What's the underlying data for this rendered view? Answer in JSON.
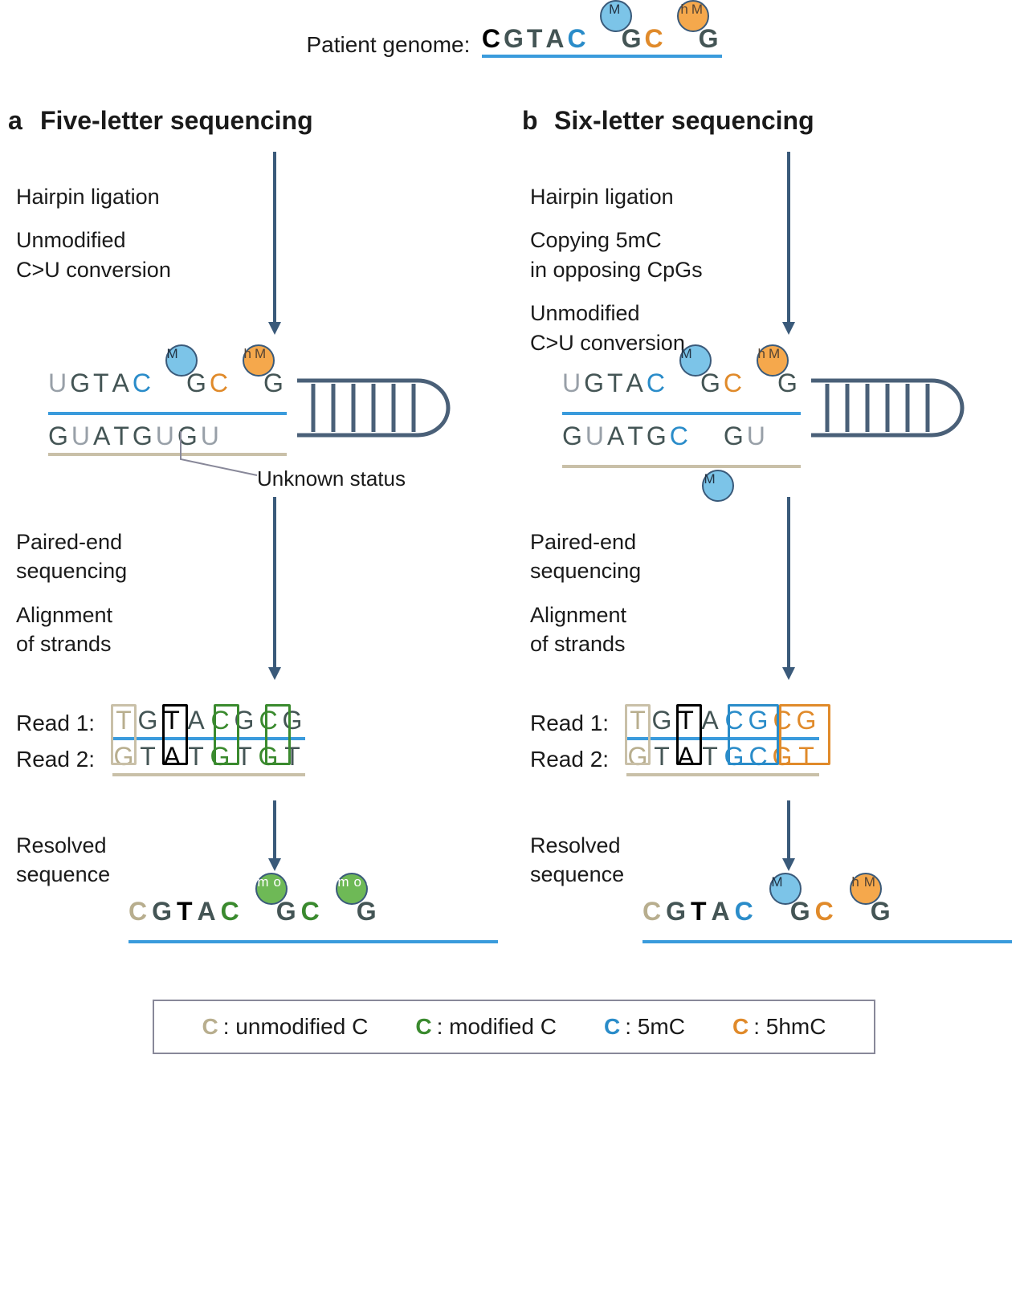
{
  "colors": {
    "blue": "#3a9bdc",
    "tan": "#c9c0a8",
    "green": "#3a8a2e",
    "orange": "#e08a2a",
    "dark_blue": "#3a5a7a",
    "black": "#000000",
    "gray": "#98a0a8",
    "marker_blue_bg": "#7cc4e8",
    "marker_orange_bg": "#f5a84c",
    "marker_green_bg": "#6eb956",
    "box_tan": "#c9c0a8",
    "box_black": "#000000",
    "box_green": "#3a8a2e",
    "box_blue": "#2a8cc9",
    "box_orange": "#e08a2a"
  },
  "top": {
    "label": "Patient genome:",
    "sequence": [
      {
        "b": "C",
        "cls": "c-black",
        "bold": true
      },
      {
        "b": "G",
        "cls": "c-dark"
      },
      {
        "b": "T",
        "cls": "c-dark"
      },
      {
        "b": "A",
        "cls": "c-dark"
      },
      {
        "b": "C",
        "cls": "c-blue",
        "marker": "M",
        "mcls": "marker-m"
      },
      {
        "b": "G",
        "cls": "c-dark"
      },
      {
        "b": "C",
        "cls": "c-orange",
        "marker": "hM",
        "mcls": "marker-hm"
      },
      {
        "b": "G",
        "cls": "c-dark"
      }
    ]
  },
  "panel_a": {
    "label": "a",
    "title": "Five-letter sequencing",
    "step1_lines": [
      "Hairpin ligation",
      "Unmodified\nC>U conversion"
    ],
    "hairpin_top": [
      {
        "b": "U",
        "cls": "c-gray"
      },
      {
        "b": "G",
        "cls": "c-dark"
      },
      {
        "b": "T",
        "cls": "c-dark"
      },
      {
        "b": "A",
        "cls": "c-dark"
      },
      {
        "b": "C",
        "cls": "c-blue",
        "marker": "M",
        "mcls": "marker-m"
      },
      {
        "b": "G",
        "cls": "c-dark"
      },
      {
        "b": "C",
        "cls": "c-orange",
        "marker": "hM",
        "mcls": "marker-hm"
      },
      {
        "b": "G",
        "cls": "c-dark"
      }
    ],
    "hairpin_bot": [
      {
        "b": "G",
        "cls": "c-dark"
      },
      {
        "b": "U",
        "cls": "c-gray"
      },
      {
        "b": "A",
        "cls": "c-dark"
      },
      {
        "b": "T",
        "cls": "c-dark"
      },
      {
        "b": "G",
        "cls": "c-dark"
      },
      {
        "b": "U",
        "cls": "c-gray"
      },
      {
        "b": "G",
        "cls": "c-dark"
      },
      {
        "b": "U",
        "cls": "c-gray"
      }
    ],
    "unknown_label": "Unknown status",
    "step2_lines": [
      "Paired-end\nsequencing",
      "Alignment\nof strands"
    ],
    "read1_label": "Read 1:",
    "read2_label": "Read 2:",
    "read1": [
      {
        "b": "T",
        "cls": "c-tan"
      },
      {
        "b": "G",
        "cls": "c-dark"
      },
      {
        "b": "T",
        "cls": "c-black"
      },
      {
        "b": "A",
        "cls": "c-dark"
      },
      {
        "b": "C",
        "cls": "c-green"
      },
      {
        "b": "G",
        "cls": "c-dark"
      },
      {
        "b": "C",
        "cls": "c-green"
      },
      {
        "b": "G",
        "cls": "c-dark"
      }
    ],
    "read2": [
      {
        "b": "G",
        "cls": "c-tan"
      },
      {
        "b": "T",
        "cls": "c-dark"
      },
      {
        "b": "A",
        "cls": "c-black"
      },
      {
        "b": "T",
        "cls": "c-dark"
      },
      {
        "b": "G",
        "cls": "c-green"
      },
      {
        "b": "T",
        "cls": "c-dark"
      },
      {
        "b": "G",
        "cls": "c-green"
      },
      {
        "b": "T",
        "cls": "c-dark"
      }
    ],
    "read_boxes": [
      {
        "col": 0,
        "w": 1,
        "color": "box_tan"
      },
      {
        "col": 2,
        "w": 1,
        "color": "box_black"
      },
      {
        "col": 4,
        "w": 1,
        "color": "box_green"
      },
      {
        "col": 6,
        "w": 1,
        "color": "box_green"
      }
    ],
    "step3_label": "Resolved\nsequence",
    "resolved": [
      {
        "b": "C",
        "cls": "c-tan"
      },
      {
        "b": "G",
        "cls": "c-dark"
      },
      {
        "b": "T",
        "cls": "c-black",
        "bold": true
      },
      {
        "b": "A",
        "cls": "c-dark"
      },
      {
        "b": "C",
        "cls": "c-green",
        "marker": "mod",
        "mcls": "marker-mod"
      },
      {
        "b": "G",
        "cls": "c-dark"
      },
      {
        "b": "C",
        "cls": "c-green",
        "marker": "mod",
        "mcls": "marker-mod"
      },
      {
        "b": "G",
        "cls": "c-dark"
      }
    ]
  },
  "panel_b": {
    "label": "b",
    "title": "Six-letter sequencing",
    "step1_lines": [
      "Hairpin ligation",
      "Copying 5mC\nin opposing CpGs",
      "Unmodified\nC>U conversion"
    ],
    "hairpin_top": [
      {
        "b": "U",
        "cls": "c-gray"
      },
      {
        "b": "G",
        "cls": "c-dark"
      },
      {
        "b": "T",
        "cls": "c-dark"
      },
      {
        "b": "A",
        "cls": "c-dark"
      },
      {
        "b": "C",
        "cls": "c-blue",
        "marker": "M",
        "mcls": "marker-m"
      },
      {
        "b": "G",
        "cls": "c-dark"
      },
      {
        "b": "C",
        "cls": "c-orange",
        "marker": "hM",
        "mcls": "marker-hm"
      },
      {
        "b": "G",
        "cls": "c-dark"
      }
    ],
    "hairpin_bot": [
      {
        "b": "G",
        "cls": "c-dark"
      },
      {
        "b": "U",
        "cls": "c-gray"
      },
      {
        "b": "A",
        "cls": "c-dark"
      },
      {
        "b": "T",
        "cls": "c-dark"
      },
      {
        "b": "G",
        "cls": "c-dark"
      },
      {
        "b": "C",
        "cls": "c-blue",
        "marker_below": "M",
        "mcls": "marker-m"
      },
      {
        "b": "G",
        "cls": "c-dark"
      },
      {
        "b": "U",
        "cls": "c-gray"
      }
    ],
    "step2_lines": [
      "Paired-end\nsequencing",
      "Alignment\nof strands"
    ],
    "read1_label": "Read 1:",
    "read2_label": "Read 2:",
    "read1": [
      {
        "b": "T",
        "cls": "c-tan"
      },
      {
        "b": "G",
        "cls": "c-dark"
      },
      {
        "b": "T",
        "cls": "c-black"
      },
      {
        "b": "A",
        "cls": "c-dark"
      },
      {
        "b": "C",
        "cls": "c-blue"
      },
      {
        "b": "G",
        "cls": "c-blue"
      },
      {
        "b": "C",
        "cls": "c-orange"
      },
      {
        "b": "G",
        "cls": "c-orange"
      }
    ],
    "read2": [
      {
        "b": "G",
        "cls": "c-tan"
      },
      {
        "b": "T",
        "cls": "c-dark"
      },
      {
        "b": "A",
        "cls": "c-black"
      },
      {
        "b": "T",
        "cls": "c-dark"
      },
      {
        "b": "G",
        "cls": "c-blue"
      },
      {
        "b": "C",
        "cls": "c-blue"
      },
      {
        "b": "G",
        "cls": "c-orange"
      },
      {
        "b": "T",
        "cls": "c-orange"
      }
    ],
    "read_boxes": [
      {
        "col": 0,
        "w": 1,
        "color": "box_tan"
      },
      {
        "col": 2,
        "w": 1,
        "color": "box_black"
      },
      {
        "col": 4,
        "w": 2,
        "color": "box_blue"
      },
      {
        "col": 6,
        "w": 2,
        "color": "box_orange"
      }
    ],
    "step3_label": "Resolved\nsequence",
    "resolved": [
      {
        "b": "C",
        "cls": "c-tan"
      },
      {
        "b": "G",
        "cls": "c-dark"
      },
      {
        "b": "T",
        "cls": "c-black",
        "bold": true
      },
      {
        "b": "A",
        "cls": "c-dark"
      },
      {
        "b": "C",
        "cls": "c-blue",
        "marker": "M",
        "mcls": "marker-m"
      },
      {
        "b": "G",
        "cls": "c-dark"
      },
      {
        "b": "C",
        "cls": "c-orange",
        "marker": "hM",
        "mcls": "marker-hm"
      },
      {
        "b": "G",
        "cls": "c-dark"
      }
    ]
  },
  "legend": [
    {
      "letter": "C",
      "cls": "c-tan",
      "text": ": unmodified C"
    },
    {
      "letter": "C",
      "cls": "c-green",
      "text": ": modified C"
    },
    {
      "letter": "C",
      "cls": "c-blue",
      "text": ": 5mC"
    },
    {
      "letter": "C",
      "cls": "c-orange",
      "text": ": 5hmC"
    }
  ]
}
